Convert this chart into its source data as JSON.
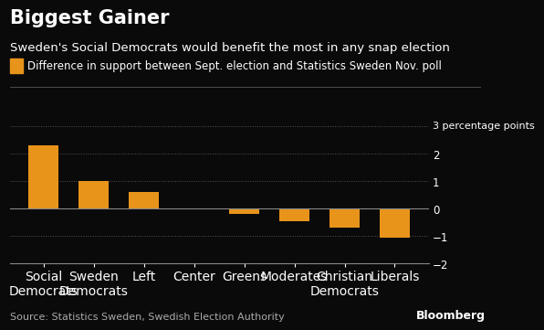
{
  "title": "Biggest Gainer",
  "subtitle": "Sweden's Social Democrats would benefit the most in any snap election",
  "legend_label": "Difference in support between Sept. election and Statistics Sweden Nov. poll",
  "annotation": "3 percentage points",
  "source": "Source: Statistics Sweden, Swedish Election Authority",
  "categories": [
    "Social\nDemocrats",
    "Sweden\nDemocrats",
    "Left",
    "Center",
    "Greens",
    "Moderates",
    "Christian\nDemocrats",
    "Liberals"
  ],
  "values": [
    2.3,
    1.0,
    0.6,
    0.0,
    -0.2,
    -0.45,
    -0.7,
    -1.05
  ],
  "bar_color": "#E8941A",
  "background_color": "#0a0a0a",
  "text_color": "#ffffff",
  "grid_color": "#555555",
  "ylim": [
    -2.3,
    3.4
  ],
  "yticks": [
    -2,
    -1,
    0,
    1,
    2
  ],
  "title_fontsize": 15,
  "subtitle_fontsize": 9.5,
  "legend_fontsize": 8.5,
  "tick_fontsize": 8.5,
  "source_fontsize": 8
}
